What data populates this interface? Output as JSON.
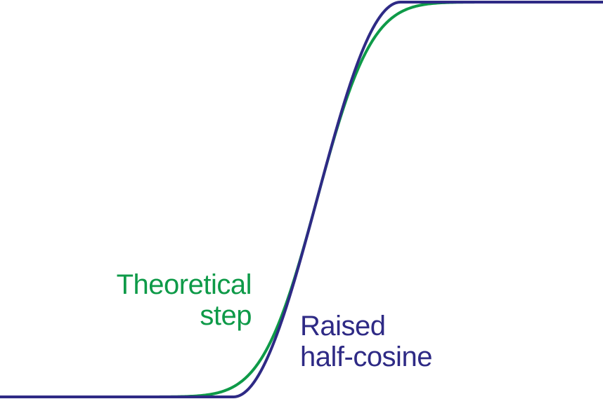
{
  "labels": {
    "theoretical": {
      "line1": "Theoretical",
      "line2": "step"
    },
    "cosine": {
      "line1": "Raised",
      "line2": "half-cosine"
    }
  },
  "curves": {
    "theoretical_step": {
      "name": "Theoretical step",
      "color": "#0e9a48",
      "shape": "smooth sigmoid"
    },
    "raised_half_cosine": {
      "name": "Raised half-cosine",
      "color": "#2e2a85",
      "shape": "raised half-cosine transition"
    }
  },
  "colors": {
    "green": "#0e9a48",
    "purple": "#2e2a85",
    "background": "#ffffff"
  }
}
